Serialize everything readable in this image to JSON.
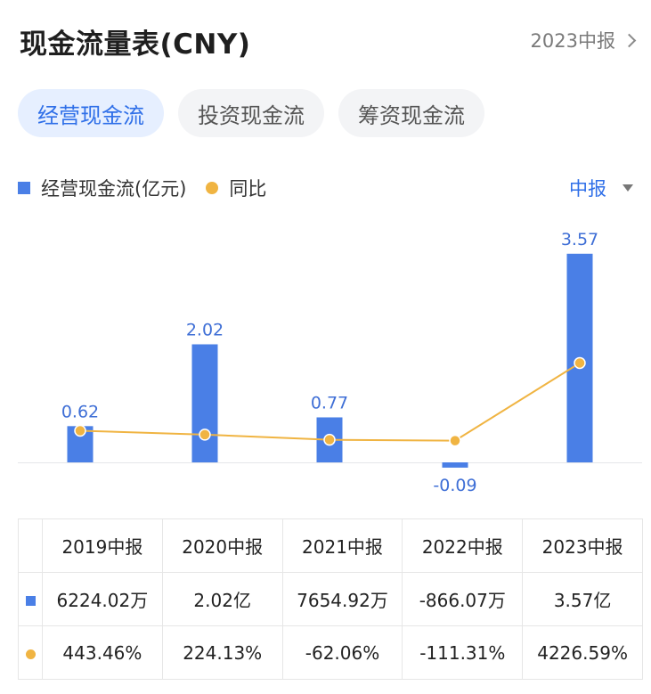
{
  "header": {
    "title": "现金流量表(CNY)",
    "period_link": "2023中报"
  },
  "tabs": [
    {
      "label": "经营现金流",
      "active": true
    },
    {
      "label": "投资现金流",
      "active": false
    },
    {
      "label": "筹资现金流",
      "active": false
    }
  ],
  "legend": {
    "bar_label": "经营现金流(亿元)",
    "line_label": "同比"
  },
  "period_select": {
    "label": "中报"
  },
  "colors": {
    "bar": "#4a7fe6",
    "line": "#f0b442",
    "accent": "#2f6fe8",
    "positive": "#e0504f",
    "negative": "#2e9e63"
  },
  "chart_data": {
    "type": "bar",
    "categories": [
      "2019中报",
      "2020中报",
      "2021中报",
      "2022中报",
      "2023中报"
    ],
    "series": [
      {
        "name": "经营现金流(亿元)",
        "type": "bar",
        "values": [
          0.62,
          2.02,
          0.77,
          -0.09,
          3.57
        ],
        "labels": [
          "0.62",
          "2.02",
          "0.77",
          "-0.09",
          "3.57"
        ]
      },
      {
        "name": "同比",
        "type": "line",
        "values": [
          443.46,
          224.13,
          -62.06,
          -111.31,
          4226.59
        ]
      }
    ],
    "legend_position": "top-left",
    "grid": false
  },
  "table": {
    "headers": [
      "2019中报",
      "2020中报",
      "2021中报",
      "2022中报",
      "2023中报"
    ],
    "value_row": [
      "6224.02万",
      "2.02亿",
      "7654.92万",
      "-866.07万",
      "3.57亿"
    ],
    "yoy_row": [
      "443.46%",
      "224.13%",
      "-62.06%",
      "-111.31%",
      "4226.59%"
    ]
  }
}
